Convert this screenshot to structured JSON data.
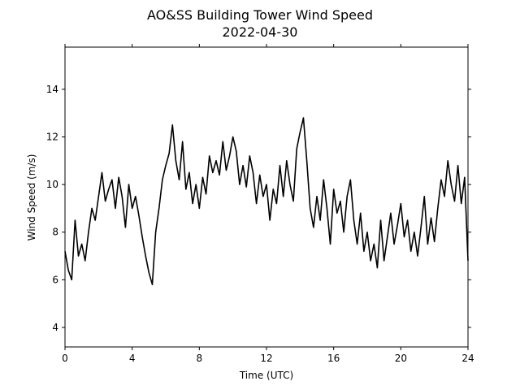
{
  "chart_data": {
    "type": "line",
    "title": "AO&SS Building Tower Wind Speed",
    "subtitle": "2022-04-30",
    "x_label": "Time (UTC)",
    "y_label": "Wind Speed (m/s)",
    "color": "#000000",
    "xlim": [
      0,
      24
    ],
    "xticks": [
      0,
      4,
      8,
      12,
      16,
      20,
      24
    ],
    "ylim": [
      3.18,
      15.77
    ],
    "yticks": [
      4,
      6,
      8,
      10,
      12,
      14
    ],
    "x": [
      0,
      0.2,
      0.4,
      0.6,
      0.8,
      1,
      1.2,
      1.4,
      1.6,
      1.8,
      2,
      2.2,
      2.4,
      2.6,
      2.8,
      3,
      3.2,
      3.4,
      3.6,
      3.8,
      4,
      4.2,
      4.4,
      4.6,
      4.8,
      5,
      5.2,
      5.4,
      5.6,
      5.8,
      6,
      6.2,
      6.4,
      6.6,
      6.8,
      7,
      7.2,
      7.4,
      7.6,
      7.8,
      8,
      8.2,
      8.4,
      8.6,
      8.8,
      9,
      9.2,
      9.4,
      9.6,
      9.8,
      10,
      10.2,
      10.4,
      10.6,
      10.8,
      11,
      11.2,
      11.4,
      11.6,
      11.8,
      12,
      12.2,
      12.4,
      12.6,
      12.8,
      13,
      13.2,
      13.4,
      13.6,
      13.8,
      14,
      14.2,
      14.4,
      14.6,
      14.8,
      15,
      15.2,
      15.4,
      15.6,
      15.8,
      16,
      16.2,
      16.4,
      16.6,
      16.8,
      17,
      17.2,
      17.4,
      17.6,
      17.8,
      18,
      18.2,
      18.4,
      18.6,
      18.8,
      19,
      19.2,
      19.4,
      19.6,
      19.8,
      20,
      20.2,
      20.4,
      20.6,
      20.8,
      21,
      21.2,
      21.4,
      21.6,
      21.8,
      22,
      22.2,
      22.4,
      22.6,
      22.8,
      23,
      23.2,
      23.4,
      23.6,
      23.8,
      24
    ],
    "values": [
      7.2,
      6.4,
      6.0,
      8.5,
      7.0,
      7.5,
      6.8,
      8.0,
      9.0,
      8.5,
      9.5,
      10.5,
      9.3,
      9.8,
      10.2,
      9.0,
      10.3,
      9.5,
      8.2,
      10.0,
      9.0,
      9.5,
      8.7,
      7.8,
      7.0,
      6.3,
      5.8,
      8.0,
      9.0,
      10.2,
      10.8,
      11.3,
      12.5,
      11.0,
      10.2,
      11.8,
      9.8,
      10.5,
      9.2,
      10.0,
      9.0,
      10.3,
      9.6,
      11.2,
      10.5,
      11.0,
      10.4,
      11.8,
      10.6,
      11.2,
      12.0,
      11.4,
      10.0,
      10.8,
      9.9,
      11.2,
      10.5,
      9.2,
      10.4,
      9.5,
      10.0,
      8.5,
      9.8,
      9.2,
      10.8,
      9.5,
      11.0,
      10.0,
      9.3,
      11.5,
      12.2,
      12.8,
      11.0,
      9.0,
      8.2,
      9.5,
      8.5,
      10.2,
      9.0,
      7.5,
      9.8,
      8.8,
      9.3,
      8.0,
      9.5,
      10.2,
      8.5,
      7.5,
      8.8,
      7.2,
      8.0,
      6.8,
      7.5,
      6.5,
      8.5,
      6.8,
      7.8,
      8.8,
      7.5,
      8.3,
      9.2,
      7.8,
      8.5,
      7.2,
      8.0,
      7.0,
      8.2,
      9.5,
      7.5,
      8.6,
      7.6,
      9.0,
      10.2,
      9.5,
      11.0,
      10.0,
      9.3,
      10.8,
      9.2,
      10.3,
      6.8
    ]
  }
}
